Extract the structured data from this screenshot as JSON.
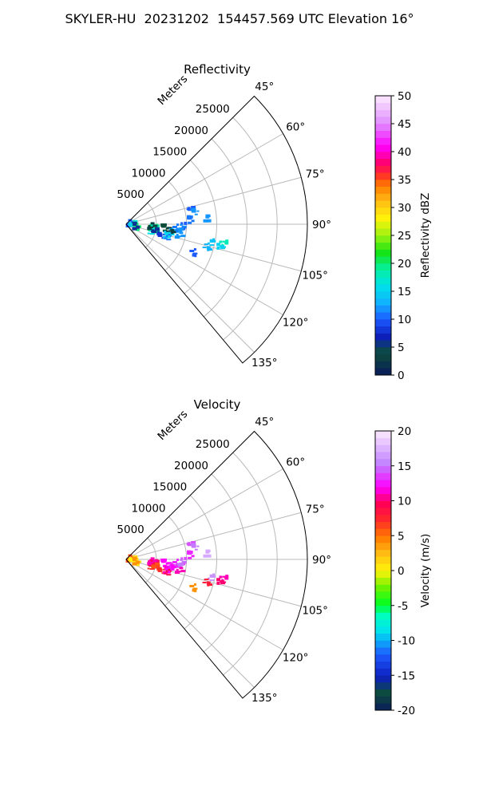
{
  "figure": {
    "title": "SKYLER-HU  20231202  154457.569 UTC Elevation 16°"
  },
  "chart_data": [
    {
      "type": "polar-sector-heatmap",
      "title": "Reflectivity",
      "range_label": "Meters",
      "range_ticks": [
        5000,
        10000,
        15000,
        20000,
        25000
      ],
      "range_max_m": 30000,
      "azimuth_range_deg": [
        45,
        140
      ],
      "azimuth_ticks": [
        "45°",
        "60°",
        "75°",
        "90°",
        "105°",
        "120°",
        "135°"
      ],
      "grid": true,
      "colorbar": {
        "label": "Reflectivity dBZ",
        "min": 0,
        "max": 50,
        "ticks": [
          0,
          5,
          10,
          15,
          20,
          25,
          30,
          35,
          40,
          45,
          50
        ],
        "colormap": "pyart_HomeyerRainbow-like"
      },
      "echo_cells": [
        {
          "az": 93,
          "r": 600,
          "value": 10
        },
        {
          "az": 97,
          "r": 1100,
          "value": 17
        },
        {
          "az": 100,
          "r": 900,
          "value": 15
        },
        {
          "az": 101,
          "r": 1600,
          "value": 20
        },
        {
          "az": 92,
          "r": 1400,
          "value": 6
        },
        {
          "az": 103,
          "r": 4200,
          "value": 16
        },
        {
          "az": 95,
          "r": 4800,
          "value": 20
        },
        {
          "az": 93,
          "r": 4900,
          "value": 19
        },
        {
          "az": 99,
          "r": 4600,
          "value": 21
        },
        {
          "az": 100,
          "r": 5300,
          "value": 18
        },
        {
          "az": 102,
          "r": 5000,
          "value": 19
        },
        {
          "az": 101,
          "r": 4700,
          "value": 17
        },
        {
          "az": 97,
          "r": 4200,
          "value": 3
        },
        {
          "az": 105,
          "r": 4800,
          "value": 6
        },
        {
          "az": 108,
          "r": 5900,
          "value": 8
        },
        {
          "az": 94,
          "r": 6200,
          "value": 4
        },
        {
          "az": 103,
          "r": 6800,
          "value": 14
        },
        {
          "az": 105,
          "r": 7200,
          "value": 11
        },
        {
          "az": 101,
          "r": 7500,
          "value": 16
        },
        {
          "az": 97,
          "r": 8200,
          "value": 13
        },
        {
          "az": 98,
          "r": 7700,
          "value": 3
        },
        {
          "az": 95,
          "r": 8700,
          "value": 11
        },
        {
          "az": 93,
          "r": 9600,
          "value": 10
        },
        {
          "az": 95,
          "r": 9200,
          "value": 12
        },
        {
          "az": 103,
          "r": 9000,
          "value": 12
        },
        {
          "az": 77,
          "r": 10800,
          "value": 10
        },
        {
          "az": 79,
          "r": 11400,
          "value": 12
        },
        {
          "az": 85,
          "r": 10500,
          "value": 11
        },
        {
          "az": 85,
          "r": 13500,
          "value": 12
        },
        {
          "az": 101,
          "r": 14500,
          "value": 14
        },
        {
          "az": 100,
          "r": 16600,
          "value": 18
        },
        {
          "az": 103,
          "r": 16300,
          "value": 15
        },
        {
          "az": 106,
          "r": 14200,
          "value": 13
        },
        {
          "az": 113,
          "r": 12400,
          "value": 10
        }
      ]
    },
    {
      "type": "polar-sector-heatmap",
      "title": "Velocity",
      "range_label": "Meters",
      "range_ticks": [
        5000,
        10000,
        15000,
        20000,
        25000
      ],
      "range_max_m": 30000,
      "azimuth_range_deg": [
        45,
        140
      ],
      "azimuth_ticks": [
        "45°",
        "60°",
        "75°",
        "90°",
        "105°",
        "120°",
        "135°"
      ],
      "grid": true,
      "colorbar": {
        "label": "Velocity (m/s)",
        "min": -20,
        "max": 20,
        "ticks": [
          -20,
          -15,
          -10,
          -5,
          0,
          5,
          10,
          15,
          20
        ],
        "colormap": "pyart_BuDRd18-like"
      },
      "echo_cells": [
        {
          "az": 93,
          "r": 600,
          "value": 6
        },
        {
          "az": 97,
          "r": 1100,
          "value": 1
        },
        {
          "az": 100,
          "r": 900,
          "value": 0
        },
        {
          "az": 101,
          "r": 1600,
          "value": 1
        },
        {
          "az": 92,
          "r": 1400,
          "value": 4
        },
        {
          "az": 103,
          "r": 4200,
          "value": 7
        },
        {
          "az": 95,
          "r": 4800,
          "value": 10
        },
        {
          "az": 93,
          "r": 4900,
          "value": 10
        },
        {
          "az": 99,
          "r": 4600,
          "value": 8
        },
        {
          "az": 100,
          "r": 5300,
          "value": 7
        },
        {
          "az": 102,
          "r": 5000,
          "value": 8
        },
        {
          "az": 101,
          "r": 4700,
          "value": 9
        },
        {
          "az": 97,
          "r": 4200,
          "value": 11
        },
        {
          "az": 105,
          "r": 4800,
          "value": 6
        },
        {
          "az": 108,
          "r": 5900,
          "value": 7
        },
        {
          "az": 94,
          "r": 6200,
          "value": 12
        },
        {
          "az": 103,
          "r": 6800,
          "value": 11
        },
        {
          "az": 105,
          "r": 7200,
          "value": 9
        },
        {
          "az": 101,
          "r": 7500,
          "value": 12
        },
        {
          "az": 97,
          "r": 8200,
          "value": 14
        },
        {
          "az": 98,
          "r": 7700,
          "value": 12
        },
        {
          "az": 95,
          "r": 8700,
          "value": 13
        },
        {
          "az": 93,
          "r": 9600,
          "value": 14
        },
        {
          "az": 95,
          "r": 9200,
          "value": 15
        },
        {
          "az": 103,
          "r": 9000,
          "value": 11
        },
        {
          "az": 77,
          "r": 10800,
          "value": 14
        },
        {
          "az": 79,
          "r": 11400,
          "value": 15
        },
        {
          "az": 85,
          "r": 10500,
          "value": 13
        },
        {
          "az": 85,
          "r": 13500,
          "value": 17
        },
        {
          "az": 101,
          "r": 14500,
          "value": 16
        },
        {
          "az": 100,
          "r": 16600,
          "value": 11
        },
        {
          "az": 103,
          "r": 16300,
          "value": 10
        },
        {
          "az": 106,
          "r": 14200,
          "value": 8
        },
        {
          "az": 113,
          "r": 12400,
          "value": 4
        }
      ]
    }
  ]
}
